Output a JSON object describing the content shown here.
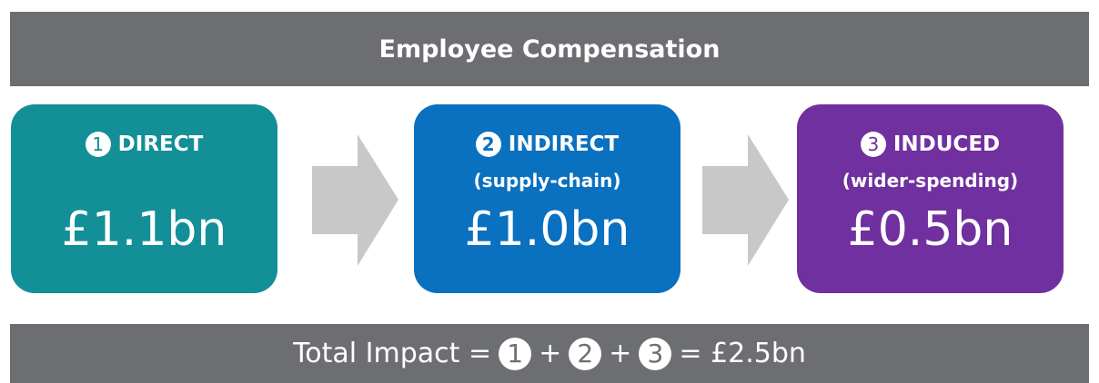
{
  "header": {
    "title": "Employee Compensation"
  },
  "boxes": [
    {
      "number": "1",
      "label": "DIRECT",
      "value": "£1.1bn"
    },
    {
      "number": "2",
      "label": "INDIRECT",
      "sublabel": "(supply-chain)",
      "value": "£1.0bn"
    },
    {
      "number": "3",
      "label": "INDUCED",
      "sublabel": "(wider-spending)",
      "value": "£0.5bn"
    }
  ],
  "footer": {
    "prefix": "Total Impact =",
    "operator": "+",
    "result": "= £2.5bn"
  }
}
